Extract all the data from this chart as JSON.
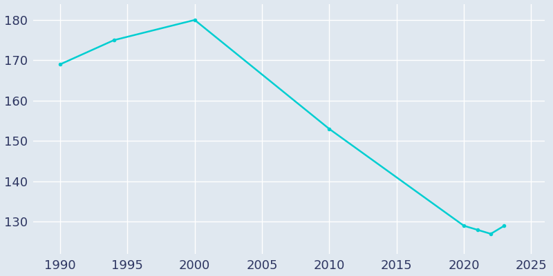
{
  "years": [
    1990,
    1994,
    2000,
    2010,
    2020,
    2021,
    2022,
    2023
  ],
  "population": [
    169,
    175,
    180,
    153,
    129,
    128,
    127,
    129
  ],
  "line_color": "#00CED1",
  "bg_color": "#e0e8f0",
  "marker": "o",
  "marker_size": 3,
  "linewidth": 1.8,
  "xlim": [
    1988,
    2026
  ],
  "ylim": [
    122,
    184
  ],
  "xticks": [
    1990,
    1995,
    2000,
    2005,
    2010,
    2015,
    2020,
    2025
  ],
  "yticks": [
    130,
    140,
    150,
    160,
    170,
    180
  ],
  "grid_color": "#ffffff",
  "tick_color": "#2d3561",
  "tick_fontsize": 13
}
